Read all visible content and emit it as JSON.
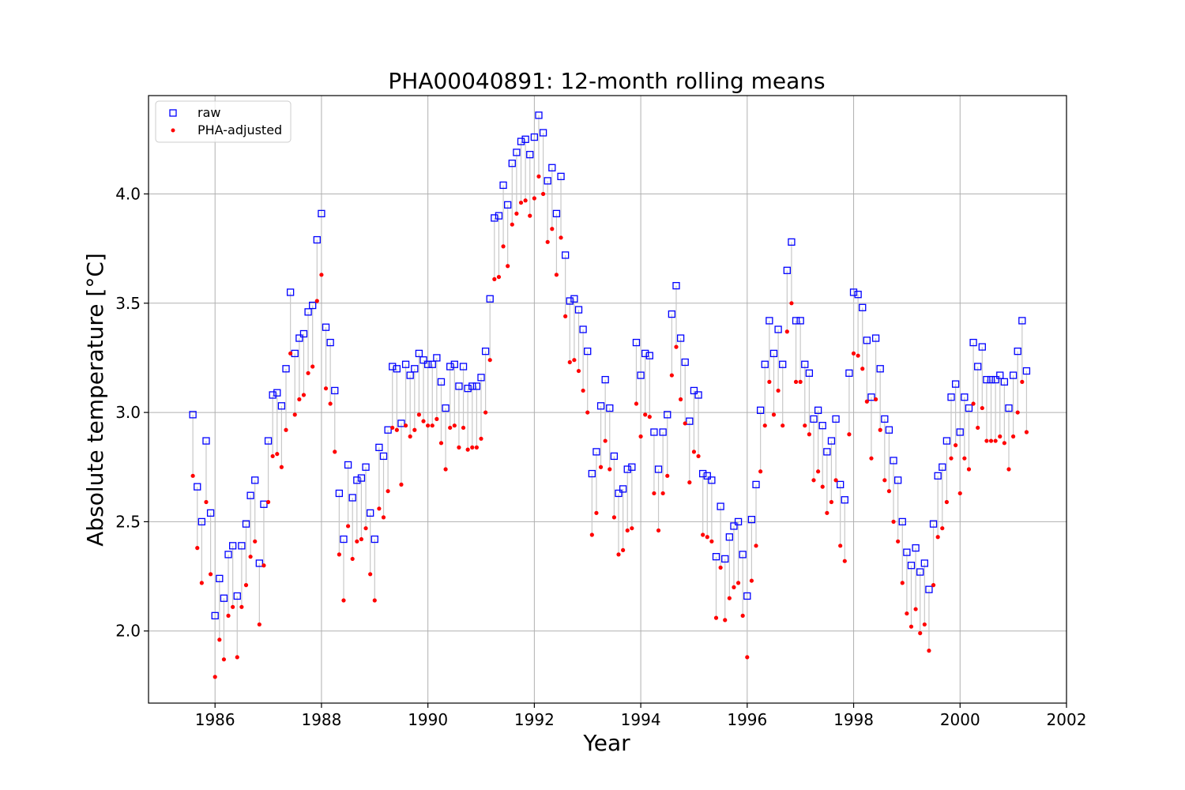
{
  "chart_data": {
    "type": "scatter",
    "title": "PHA00040891: 12-month rolling means",
    "xlabel": "Year",
    "ylabel": "Absolute temperature [°C]",
    "xlim": [
      1984.75,
      2002
    ],
    "ylim": [
      1.67,
      4.45
    ],
    "xticks": [
      1986,
      1988,
      1990,
      1992,
      1994,
      1996,
      1998,
      2000,
      2002
    ],
    "yticks": [
      2.0,
      2.5,
      3.0,
      3.5,
      4.0
    ],
    "grid": true,
    "legend_position": "top-left",
    "colors": {
      "raw": "#0000ff",
      "adjusted": "#ff0000",
      "stem": "#c8c8c8"
    },
    "series": [
      {
        "name": "raw",
        "marker": "open-square"
      },
      {
        "name": "PHA-adjusted",
        "marker": "dot"
      }
    ],
    "x_start": 1985.5833,
    "x_step": 0.08333,
    "raw": [
      2.99,
      2.66,
      2.5,
      2.87,
      2.54,
      2.07,
      2.24,
      2.15,
      2.35,
      2.39,
      2.16,
      2.39,
      2.49,
      2.62,
      2.69,
      2.31,
      2.58,
      2.87,
      3.08,
      3.09,
      3.03,
      3.2,
      3.55,
      3.27,
      3.34,
      3.36,
      3.46,
      3.49,
      3.79,
      3.91,
      3.39,
      3.32,
      3.1,
      2.63,
      2.42,
      2.76,
      2.61,
      2.69,
      2.7,
      2.75,
      2.54,
      2.42,
      2.84,
      2.8,
      2.92,
      3.21,
      3.2,
      2.95,
      3.22,
      3.17,
      3.2,
      3.27,
      3.24,
      3.22,
      3.22,
      3.25,
      3.14,
      3.02,
      3.21,
      3.22,
      3.12,
      3.21,
      3.11,
      3.12,
      3.12,
      3.16,
      3.28,
      3.52,
      3.89,
      3.9,
      4.04,
      3.95,
      4.14,
      4.19,
      4.24,
      4.25,
      4.18,
      4.26,
      4.36,
      4.28,
      4.06,
      4.12,
      3.91,
      4.08,
      3.72,
      3.51,
      3.52,
      3.47,
      3.38,
      3.28,
      2.72,
      2.82,
      3.03,
      3.15,
      3.02,
      2.8,
      2.63,
      2.65,
      2.74,
      2.75,
      3.32,
      3.17,
      3.27,
      3.26,
      2.91,
      2.74,
      2.91,
      2.99,
      3.45,
      3.58,
      3.34,
      3.23,
      2.96,
      3.1,
      3.08,
      2.72,
      2.71,
      2.69,
      2.34,
      2.57,
      2.33,
      2.43,
      2.48,
      2.5,
      2.35,
      2.16,
      2.51,
      2.67,
      3.01,
      3.22,
      3.42,
      3.27,
      3.38,
      3.22,
      3.65,
      3.78,
      3.42,
      3.42,
      3.22,
      3.18,
      2.97,
      3.01,
      2.94,
      2.82,
      2.87,
      2.97,
      2.67,
      2.6,
      3.18,
      3.55,
      3.54,
      3.48,
      3.33,
      3.07,
      3.34,
      3.2,
      2.97,
      2.92,
      2.78,
      2.69,
      2.5,
      2.36,
      2.3,
      2.38,
      2.27,
      2.31,
      2.19,
      2.49,
      2.71,
      2.75,
      2.87,
      3.07,
      3.13,
      2.91,
      3.07,
      3.02,
      3.32,
      3.21,
      3.3,
      3.15,
      3.15,
      3.15,
      3.17,
      3.14,
      3.02,
      3.17,
      3.28,
      3.42,
      3.19
    ],
    "adjusted": [
      2.71,
      2.38,
      2.22,
      2.59,
      2.26,
      1.79,
      1.96,
      1.87,
      2.07,
      2.11,
      1.88,
      2.11,
      2.21,
      2.34,
      2.41,
      2.03,
      2.3,
      2.59,
      2.8,
      2.81,
      2.75,
      2.92,
      3.27,
      2.99,
      3.06,
      3.08,
      3.18,
      3.21,
      3.51,
      3.63,
      3.11,
      3.04,
      2.82,
      2.35,
      2.14,
      2.48,
      2.33,
      2.41,
      2.42,
      2.47,
      2.26,
      2.14,
      2.56,
      2.52,
      2.64,
      2.93,
      2.92,
      2.67,
      2.94,
      2.89,
      2.92,
      2.99,
      2.96,
      2.94,
      2.94,
      2.97,
      2.86,
      2.74,
      2.93,
      2.94,
      2.84,
      2.93,
      2.83,
      2.84,
      2.84,
      2.88,
      3.0,
      3.24,
      3.61,
      3.62,
      3.76,
      3.67,
      3.86,
      3.91,
      3.96,
      3.97,
      3.9,
      3.98,
      4.08,
      4.0,
      3.78,
      3.84,
      3.63,
      3.8,
      3.44,
      3.23,
      3.24,
      3.19,
      3.1,
      3.0,
      2.44,
      2.54,
      2.75,
      2.87,
      2.74,
      2.52,
      2.35,
      2.37,
      2.46,
      2.47,
      3.04,
      2.89,
      2.99,
      2.98,
      2.63,
      2.46,
      2.63,
      2.71,
      3.17,
      3.3,
      3.06,
      2.95,
      2.68,
      2.82,
      2.8,
      2.44,
      2.43,
      2.41,
      2.06,
      2.29,
      2.05,
      2.15,
      2.2,
      2.22,
      2.07,
      1.88,
      2.23,
      2.39,
      2.73,
      2.94,
      3.14,
      2.99,
      3.1,
      2.94,
      3.37,
      3.5,
      3.14,
      3.14,
      2.94,
      2.9,
      2.69,
      2.73,
      2.66,
      2.54,
      2.59,
      2.69,
      2.39,
      2.32,
      2.9,
      3.27,
      3.26,
      3.2,
      3.05,
      2.79,
      3.06,
      2.92,
      2.69,
      2.64,
      2.5,
      2.41,
      2.22,
      2.08,
      2.02,
      2.1,
      1.99,
      2.03,
      1.91,
      2.21,
      2.43,
      2.47,
      2.59,
      2.79,
      2.85,
      2.63,
      2.79,
      2.74,
      3.04,
      2.93,
      3.02,
      2.87,
      2.87,
      2.87,
      2.89,
      2.86,
      2.74,
      2.89,
      3.0,
      3.14,
      2.91
    ]
  }
}
